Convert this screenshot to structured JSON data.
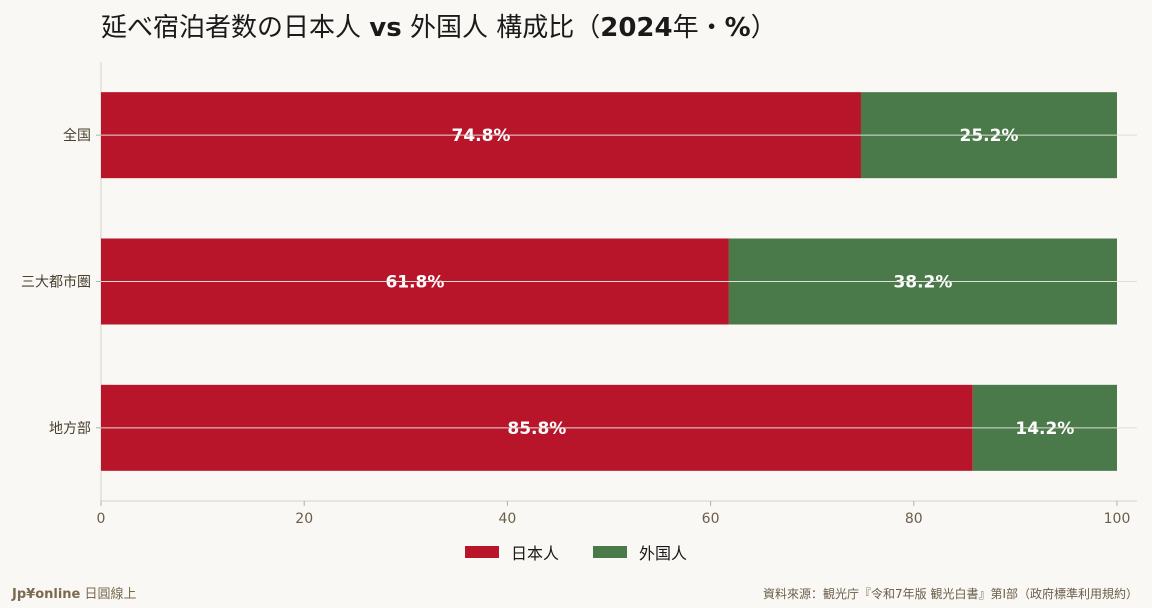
{
  "chart_data": {
    "type": "bar",
    "orientation": "horizontal",
    "stacked": true,
    "title": "延べ宿泊者数の日本人 vs 外国人 構成比（2024年・%）",
    "categories": [
      "全国",
      "三大都市圏",
      "地方部"
    ],
    "series": [
      {
        "name": "日本人",
        "color": "#b8152a",
        "values": [
          74.8,
          61.8,
          85.8
        ],
        "labels": [
          "74.8%",
          "61.8%",
          "85.8%"
        ]
      },
      {
        "name": "外国人",
        "color": "#4a7a4a",
        "values": [
          25.2,
          38.2,
          14.2
        ],
        "labels": [
          "25.2%",
          "38.2%",
          "14.2%"
        ]
      }
    ],
    "xlim": [
      0,
      100
    ],
    "xticks": [
      "0",
      "20",
      "40",
      "60",
      "80",
      "100"
    ],
    "grid": true,
    "legend_position": "bottom"
  },
  "title": {
    "pre": "延べ宿泊者数の日本人 ",
    "vs": "vs",
    "mid": " 外国人 構成比（",
    "year": "2024",
    "post": "年・",
    "pct": "%",
    "close": "）"
  },
  "footer": {
    "brand": "Jp¥online",
    "brand_sub": " 日圓線上",
    "source": "資料來源：観光庁『令和7年版 観光白書』第Ⅰ部（政府標準利用規約）"
  }
}
